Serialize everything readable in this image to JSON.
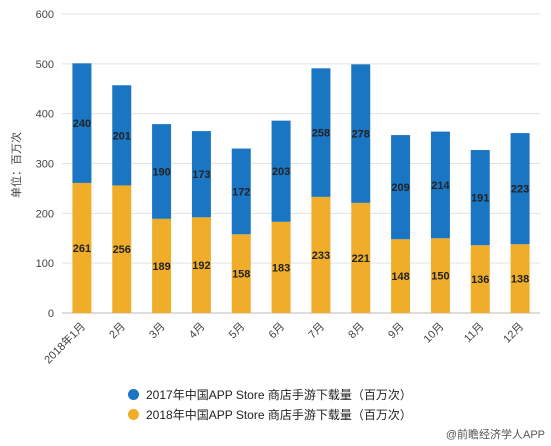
{
  "chart_data": {
    "type": "bar",
    "stacked": true,
    "categories": [
      "2018年1月",
      "2月",
      "3月",
      "4月",
      "5月",
      "6月",
      "7月",
      "8月",
      "9月",
      "10月",
      "11月",
      "12月"
    ],
    "series": [
      {
        "name": "2017年中国APP Store 商店手游下载量（百万次）",
        "color": "#1a75c2",
        "values": [
          240,
          201,
          190,
          173,
          172,
          203,
          258,
          278,
          209,
          214,
          191,
          223
        ]
      },
      {
        "name": "2018年中国APP Store 商店手游下载量（百万次）",
        "color": "#f0ad2a",
        "values": [
          261,
          256,
          189,
          192,
          158,
          183,
          233,
          221,
          148,
          150,
          136,
          138
        ]
      }
    ],
    "ylabel": "单位：百万次",
    "ylim": [
      0,
      600
    ],
    "yticks": [
      0,
      100,
      200,
      300,
      400,
      500,
      600
    ],
    "grid": true,
    "legend_position": "bottom"
  },
  "footer": {
    "source": "@前瞻经济学人APP"
  }
}
